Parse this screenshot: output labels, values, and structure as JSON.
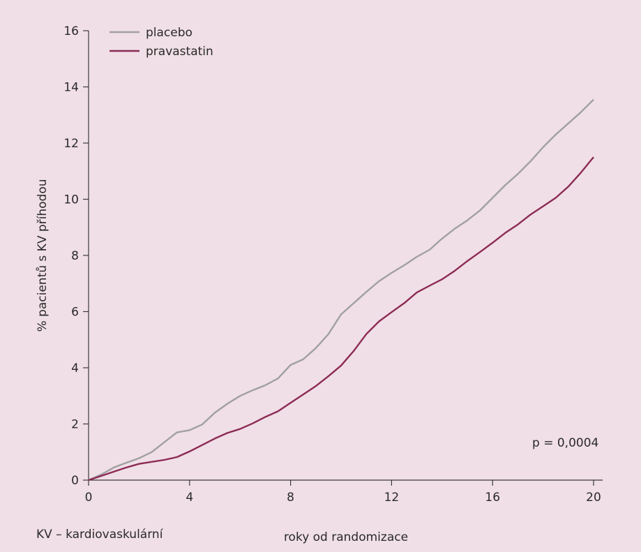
{
  "chart_data": {
    "type": "line",
    "xlabel": "roky od randomizace",
    "ylabel": "% pacientů s KV příhodou",
    "xlim": [
      0,
      21
    ],
    "ylim": [
      0,
      16
    ],
    "xticks": [
      0,
      4,
      8,
      12,
      16,
      20
    ],
    "yticks": [
      0,
      2,
      4,
      6,
      8,
      10,
      12,
      14,
      16
    ],
    "grid": false,
    "legend_position": "top-left",
    "annotation": "p = 0,0004",
    "series": [
      {
        "name": "placebo",
        "color": "#a0a0a0",
        "points": [
          [
            0,
            0
          ],
          [
            0.5,
            0.2
          ],
          [
            1,
            0.45
          ],
          [
            1.5,
            0.62
          ],
          [
            2,
            0.78
          ],
          [
            2.5,
            1.0
          ],
          [
            3,
            1.35
          ],
          [
            3.5,
            1.7
          ],
          [
            4,
            1.78
          ],
          [
            4.5,
            1.98
          ],
          [
            5,
            2.4
          ],
          [
            5.5,
            2.72
          ],
          [
            6,
            3.0
          ],
          [
            6.5,
            3.2
          ],
          [
            7,
            3.38
          ],
          [
            7.5,
            3.62
          ],
          [
            8,
            4.1
          ],
          [
            8.5,
            4.3
          ],
          [
            9,
            4.7
          ],
          [
            9.5,
            5.2
          ],
          [
            10,
            5.9
          ],
          [
            10.5,
            6.3
          ],
          [
            11,
            6.7
          ],
          [
            11.5,
            7.08
          ],
          [
            12,
            7.38
          ],
          [
            12.5,
            7.65
          ],
          [
            13,
            7.95
          ],
          [
            13.5,
            8.2
          ],
          [
            14,
            8.6
          ],
          [
            14.5,
            8.95
          ],
          [
            15,
            9.25
          ],
          [
            15.5,
            9.6
          ],
          [
            16,
            10.05
          ],
          [
            16.5,
            10.5
          ],
          [
            17,
            10.9
          ],
          [
            17.5,
            11.35
          ],
          [
            18,
            11.85
          ],
          [
            18.5,
            12.3
          ],
          [
            19,
            12.7
          ],
          [
            19.5,
            13.1
          ],
          [
            20,
            13.55
          ]
        ]
      },
      {
        "name": "pravastatin",
        "color": "#8c2a55",
        "points": [
          [
            0,
            0
          ],
          [
            0.5,
            0.15
          ],
          [
            1,
            0.3
          ],
          [
            1.5,
            0.45
          ],
          [
            2,
            0.58
          ],
          [
            2.5,
            0.65
          ],
          [
            3,
            0.72
          ],
          [
            3.5,
            0.82
          ],
          [
            4,
            1.02
          ],
          [
            4.5,
            1.25
          ],
          [
            5,
            1.48
          ],
          [
            5.5,
            1.68
          ],
          [
            6,
            1.82
          ],
          [
            6.5,
            2.02
          ],
          [
            7,
            2.25
          ],
          [
            7.5,
            2.45
          ],
          [
            8,
            2.75
          ],
          [
            8.5,
            3.05
          ],
          [
            9,
            3.35
          ],
          [
            9.5,
            3.7
          ],
          [
            10,
            4.08
          ],
          [
            10.5,
            4.6
          ],
          [
            11,
            5.2
          ],
          [
            11.5,
            5.65
          ],
          [
            12,
            5.98
          ],
          [
            12.5,
            6.3
          ],
          [
            13,
            6.68
          ],
          [
            13.5,
            6.92
          ],
          [
            14,
            7.15
          ],
          [
            14.5,
            7.45
          ],
          [
            15,
            7.8
          ],
          [
            15.5,
            8.12
          ],
          [
            16,
            8.45
          ],
          [
            16.5,
            8.8
          ],
          [
            17,
            9.1
          ],
          [
            17.5,
            9.45
          ],
          [
            18,
            9.75
          ],
          [
            18.5,
            10.05
          ],
          [
            19,
            10.45
          ],
          [
            19.5,
            10.95
          ],
          [
            20,
            11.5
          ]
        ]
      }
    ]
  },
  "footnote": "KV – kardiovaskulární"
}
